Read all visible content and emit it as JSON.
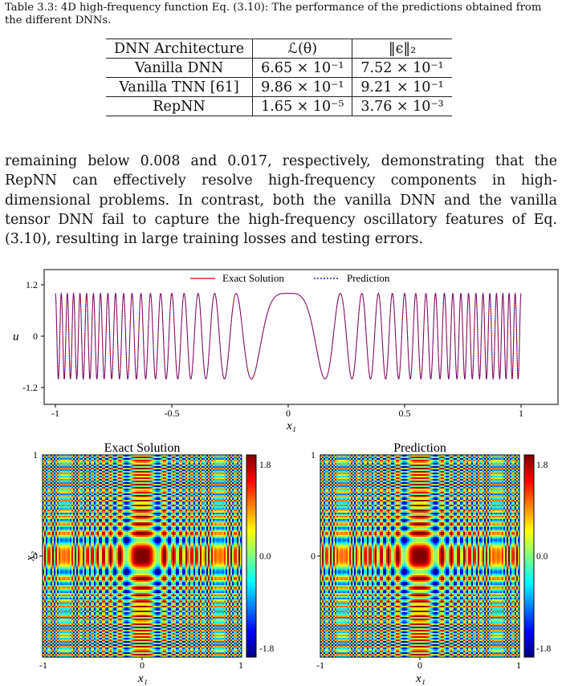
{
  "caption": "Table 3.3: 4D high-frequency function Eq. (3.10): The performance of the predictions obtained from the different DNNs.",
  "table": {
    "headers": [
      "DNN Architecture",
      "ℒ(θ)",
      "‖ϵ‖₂"
    ],
    "rows": [
      [
        "Vanilla DNN",
        "6.65 × 10⁻¹",
        "7.52 × 10⁻¹"
      ],
      [
        "Vanilla TNN [61]",
        "9.86 × 10⁻¹",
        "9.21 × 10⁻¹"
      ],
      [
        "RepNN",
        "1.65 × 10⁻⁵",
        "3.76 × 10⁻³"
      ]
    ]
  },
  "paragraph": "remaining below 0.008 and 0.017, respectively, demonstrating that the RepNN can effectively resolve high-frequency components in high-dimensional problems. In contrast, both the vanilla DNN and the vanilla tensor DNN fail to capture the high-frequency oscillatory features of Eq. (3.10), resulting in large training losses and testing errors.",
  "line_plot": {
    "legend": [
      "Exact Solution",
      "Prediction"
    ],
    "ylabel": "u",
    "xlabel": "x₁",
    "xticks": [
      "-1",
      "-0.5",
      "0",
      "0.5",
      "1"
    ],
    "yticks": [
      "1.2",
      "0",
      "-1.2"
    ],
    "colors": {
      "exact": "#e00000",
      "prediction": "#2222cc"
    }
  },
  "heatmaps": {
    "left_title": "Exact Solution",
    "right_title": "Prediction",
    "xlabel": "x₁",
    "ylabel": "x₂",
    "xticks": [
      "-1",
      "0",
      "1"
    ],
    "yticks": [
      "1",
      "0"
    ],
    "colorbar_ticks": [
      "1.8",
      "0.0",
      "-1.8"
    ]
  },
  "chart_data": [
    {
      "type": "line",
      "title": "",
      "xlabel": "x₁",
      "ylabel": "u",
      "xlim": [
        -1,
        1
      ],
      "ylim": [
        -1.35,
        1.35
      ],
      "legend_placement": "top-center",
      "series": [
        {
          "name": "Exact Solution",
          "function": "u = cos(40π x₁²)"
        },
        {
          "name": "Prediction",
          "function": "u ≈ cos(40π x₁²)"
        }
      ]
    },
    {
      "type": "heatmap",
      "title": "Exact Solution",
      "xlabel": "x₁",
      "ylabel": "x₂",
      "xlim": [
        -1,
        1
      ],
      "ylim": [
        -1,
        1
      ],
      "colorbar_range": [
        -1.8,
        1.8
      ]
    },
    {
      "type": "heatmap",
      "title": "Prediction",
      "xlabel": "x₁",
      "xlim": [
        -1,
        1
      ],
      "ylim": [
        -1,
        1
      ],
      "colorbar_range": [
        -1.8,
        1.8
      ]
    }
  ]
}
